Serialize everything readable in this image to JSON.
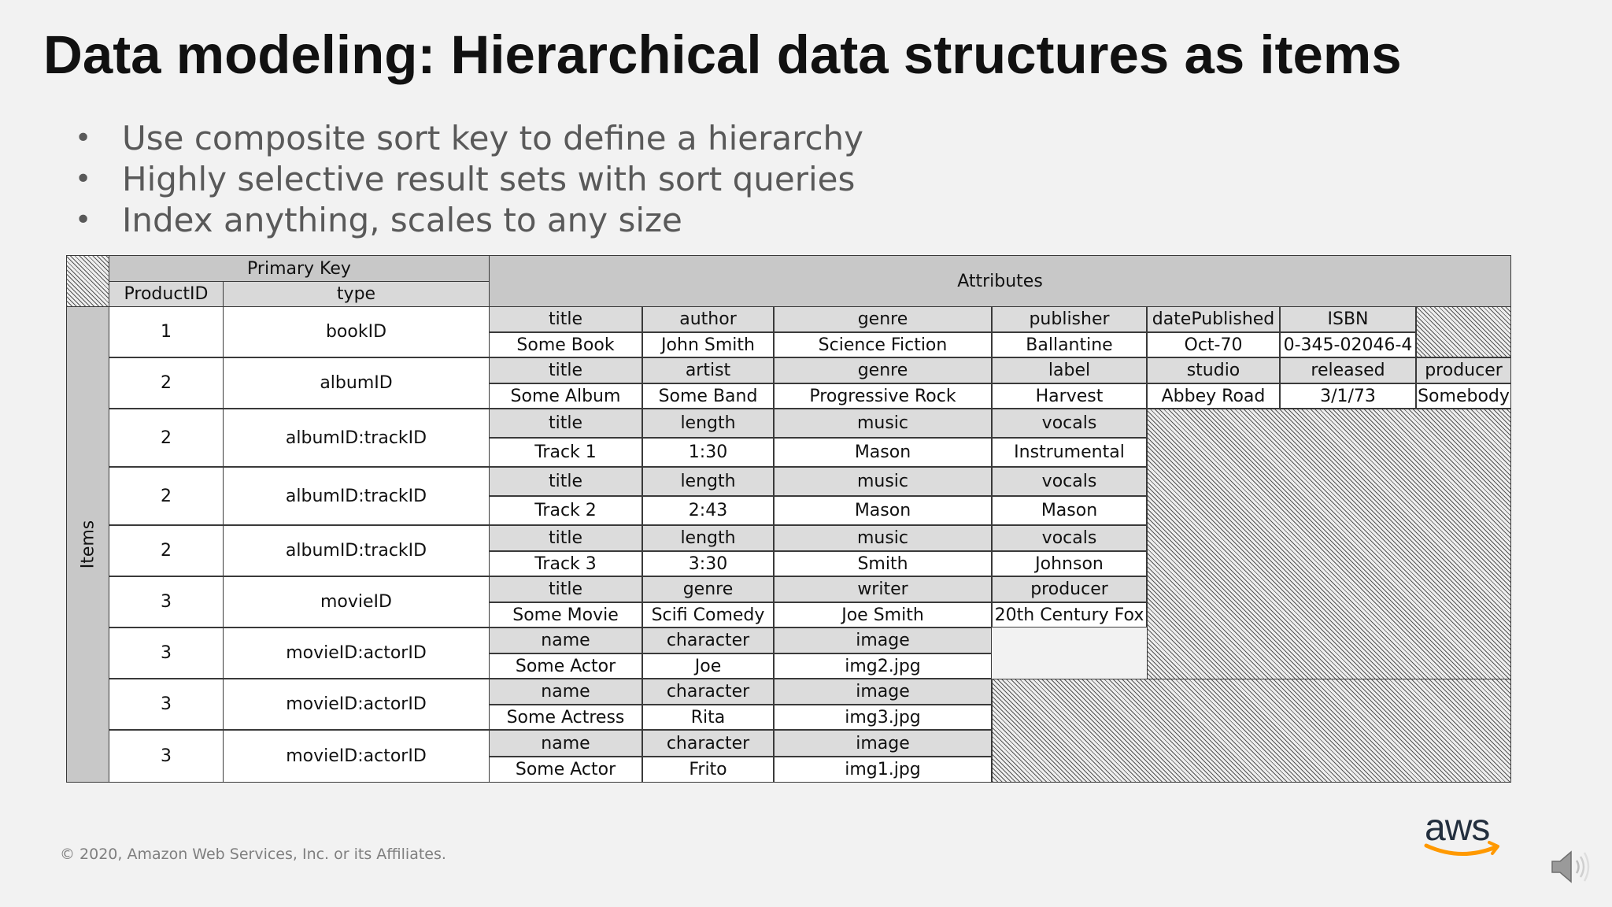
{
  "slide": {
    "title": "Data modeling: Hierarchical data structures as items",
    "bullets": [
      "Use composite sort key to define a hierarchy",
      "Highly selective result sets with sort queries",
      "Index anything, scales to any size"
    ],
    "footer": "© 2020, Amazon Web Services, Inc. or its Affiliates.",
    "logo_text": "aws",
    "logo_colors": {
      "text": "#232f3e",
      "smile": "#ff9900"
    }
  },
  "table": {
    "primary_key_label": "Primary Key",
    "attributes_label": "Attributes",
    "items_label": "Items",
    "col_headers": {
      "product_id": "ProductID",
      "type": "type"
    },
    "rows": [
      {
        "id": "1",
        "type": "bookID",
        "labels": [
          "title",
          "author",
          "genre",
          "publisher",
          "datePublished",
          "ISBN"
        ],
        "values": [
          "Some Book",
          "John Smith",
          "Science Fiction",
          "Ballantine",
          "Oct-70",
          "0-345-02046-4"
        ]
      },
      {
        "id": "2",
        "type": "albumID",
        "labels": [
          "title",
          "artist",
          "genre",
          "label",
          "studio",
          "released",
          "producer"
        ],
        "values": [
          "Some Album",
          "Some Band",
          "Progressive Rock",
          "Harvest",
          "Abbey Road",
          "3/1/73",
          "Somebody"
        ]
      },
      {
        "id": "2",
        "type": "albumID:trackID",
        "labels": [
          "title",
          "length",
          "music",
          "vocals"
        ],
        "values": [
          "Track 1",
          "1:30",
          "Mason",
          "Instrumental"
        ]
      },
      {
        "id": "2",
        "type": "albumID:trackID",
        "labels": [
          "title",
          "length",
          "music",
          "vocals"
        ],
        "values": [
          "Track 2",
          "2:43",
          "Mason",
          "Mason"
        ]
      },
      {
        "id": "2",
        "type": "albumID:trackID",
        "labels": [
          "title",
          "length",
          "music",
          "vocals"
        ],
        "values": [
          "Track 3",
          "3:30",
          "Smith",
          "Johnson"
        ]
      },
      {
        "id": "3",
        "type": "movieID",
        "labels": [
          "title",
          "genre",
          "writer",
          "producer"
        ],
        "values": [
          "Some Movie",
          "Scifi Comedy",
          "Joe Smith",
          "20th Century Fox"
        ]
      },
      {
        "id": "3",
        "type": "movieID:actorID",
        "labels": [
          "name",
          "character",
          "image"
        ],
        "values": [
          "Some Actor",
          "Joe",
          "img2.jpg"
        ]
      },
      {
        "id": "3",
        "type": "movieID:actorID",
        "labels": [
          "name",
          "character",
          "image"
        ],
        "values": [
          "Some Actress",
          "Rita",
          "img3.jpg"
        ]
      },
      {
        "id": "3",
        "type": "movieID:actorID",
        "labels": [
          "name",
          "character",
          "image"
        ],
        "values": [
          "Some Actor",
          "Frito",
          "img1.jpg"
        ]
      }
    ]
  }
}
